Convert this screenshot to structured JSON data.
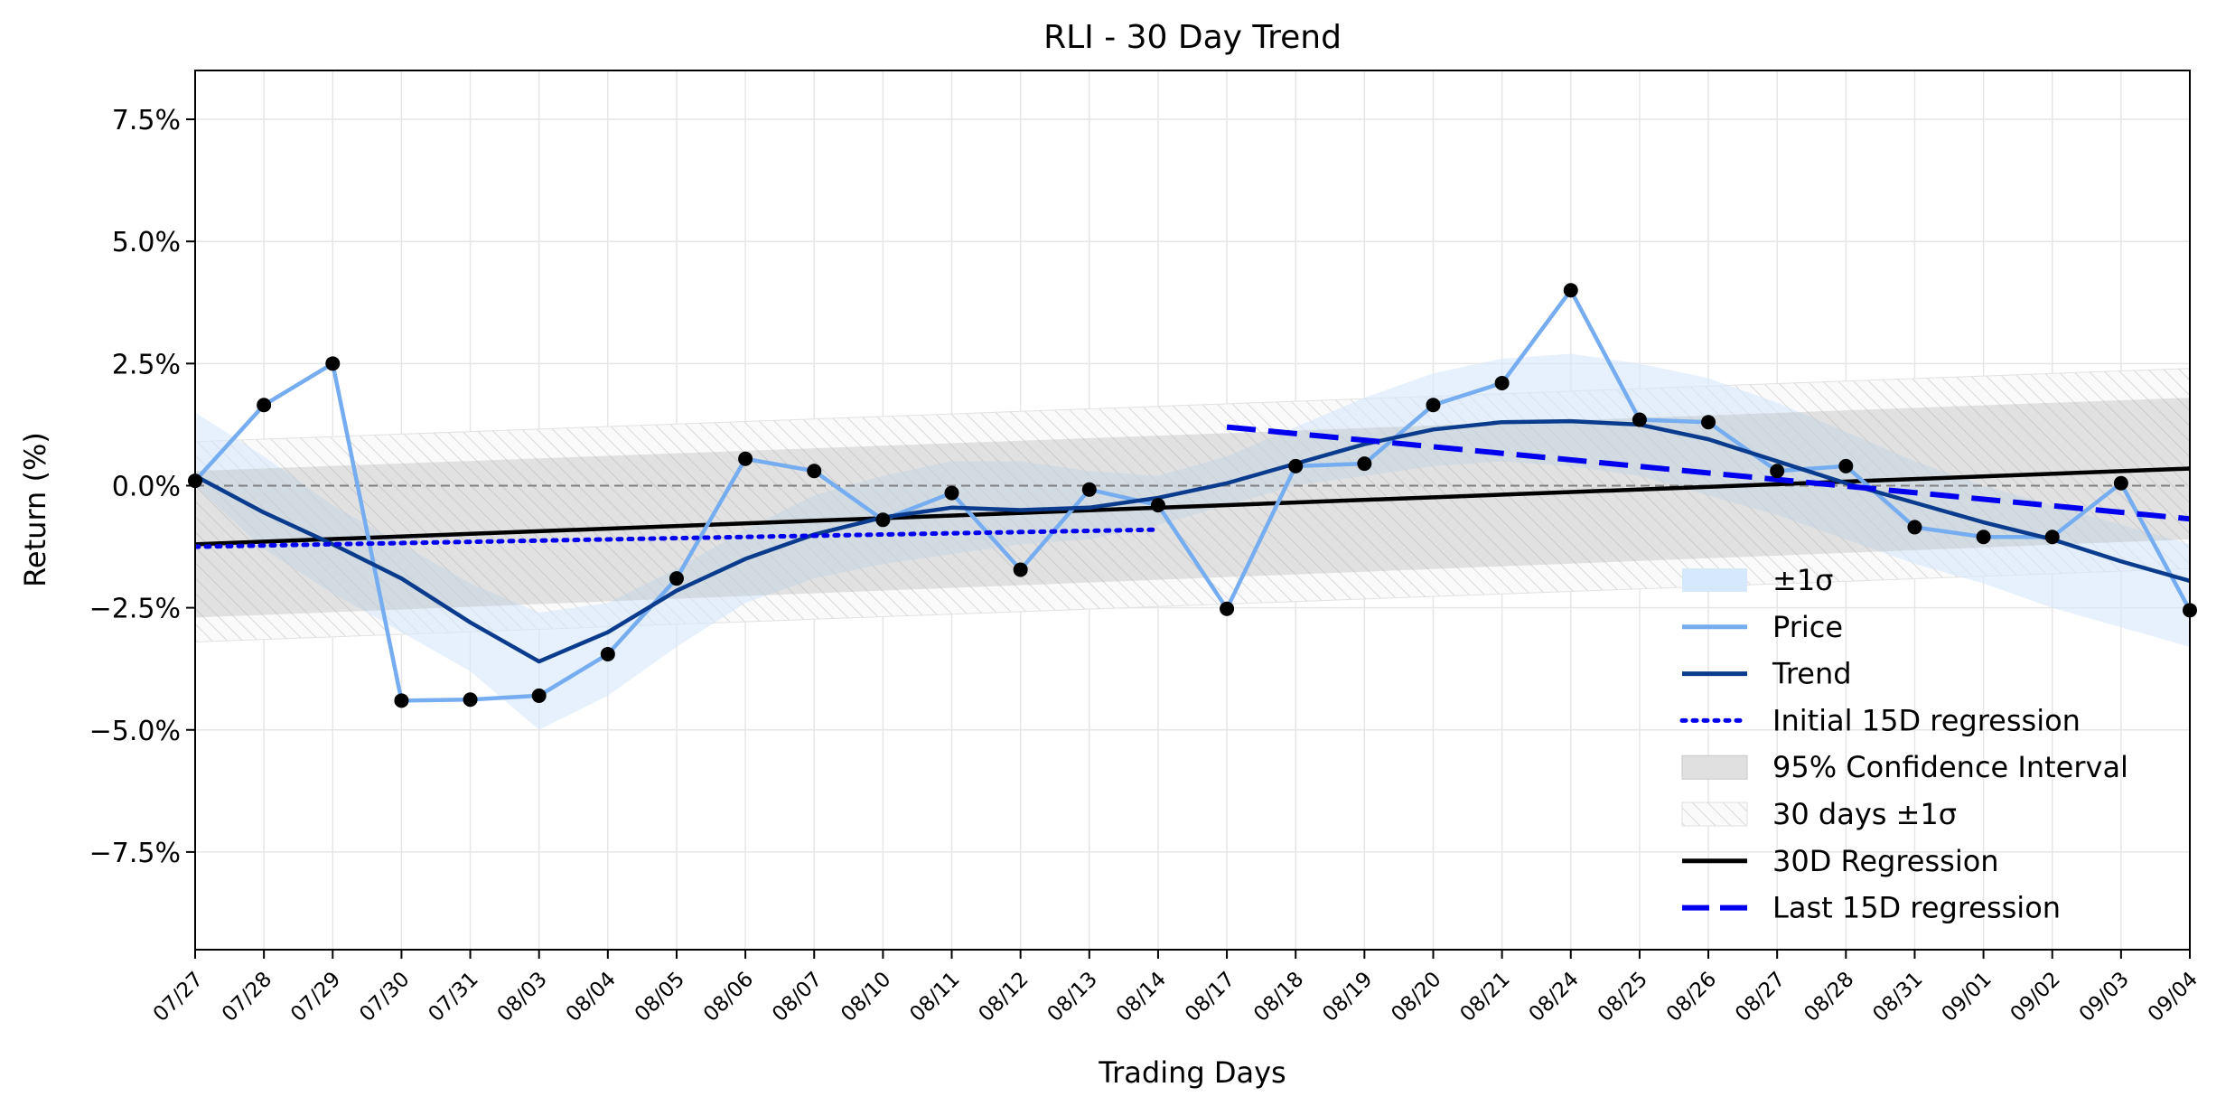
{
  "chart_data": {
    "type": "line",
    "title": "RLI - 30 Day Trend",
    "xlabel": "Trading Days",
    "ylabel": "Return (%)",
    "ylim": [
      -9.5,
      8.5
    ],
    "yticks": [
      {
        "value": -7.5,
        "label": "−7.5%"
      },
      {
        "value": -5.0,
        "label": "−5.0%"
      },
      {
        "value": -2.5,
        "label": "−2.5%"
      },
      {
        "value": 0.0,
        "label": "0.0%"
      },
      {
        "value": 2.5,
        "label": "2.5%"
      },
      {
        "value": 5.0,
        "label": "5.0%"
      },
      {
        "value": 7.5,
        "label": "7.5%"
      }
    ],
    "grid": true,
    "legend_position": "lower-right",
    "categories": [
      "07/27",
      "07/28",
      "07/29",
      "07/30",
      "07/31",
      "08/03",
      "08/04",
      "08/05",
      "08/06",
      "08/07",
      "08/10",
      "08/11",
      "08/12",
      "08/13",
      "08/14",
      "08/17",
      "08/18",
      "08/19",
      "08/20",
      "08/21",
      "08/24",
      "08/25",
      "08/26",
      "08/27",
      "08/28",
      "08/31",
      "09/01",
      "09/02",
      "09/03",
      "09/04"
    ],
    "series": [
      {
        "name": "Price",
        "color": "#76acf0",
        "values": [
          0.1,
          1.65,
          2.5,
          -4.4,
          -4.38,
          -4.3,
          -3.45,
          -1.9,
          0.55,
          0.3,
          -0.7,
          -0.15,
          -1.72,
          -0.08,
          -0.4,
          -2.52,
          0.4,
          0.45,
          1.65,
          2.1,
          4.0,
          1.35,
          1.3,
          0.3,
          0.4,
          -0.85,
          -1.05,
          -1.05,
          0.05,
          -2.55
        ]
      },
      {
        "name": "Trend",
        "color": "#0b3b8c",
        "values": [
          0.2,
          -0.55,
          -1.2,
          -1.9,
          -2.8,
          -3.6,
          -3.0,
          -2.15,
          -1.5,
          -1.0,
          -0.65,
          -0.45,
          -0.5,
          -0.45,
          -0.25,
          0.05,
          0.45,
          0.85,
          1.15,
          1.3,
          1.32,
          1.25,
          0.95,
          0.5,
          0.05,
          -0.35,
          -0.75,
          -1.1,
          -1.55,
          -1.95
        ]
      },
      {
        "name": "Initial 15D regression",
        "color": "#0000ee",
        "x_range": [
          0,
          14
        ],
        "line": [
          -1.25,
          -0.9
        ]
      },
      {
        "name": "Last 15D regression",
        "color": "#0000ee",
        "x_range": [
          15,
          29
        ],
        "line": [
          1.2,
          -0.68
        ]
      },
      {
        "name": "30D Regression",
        "color": "#000000",
        "x_range": [
          0,
          29
        ],
        "line": [
          -1.2,
          0.35
        ]
      }
    ],
    "bands": [
      {
        "name": "±1σ",
        "color": "#d6e8fc",
        "upper": [
          1.5,
          0.6,
          -0.4,
          -1.2,
          -2.0,
          -2.6,
          -2.4,
          -1.7,
          -0.9,
          -0.2,
          0.2,
          0.5,
          0.5,
          0.3,
          0.2,
          0.6,
          1.2,
          1.8,
          2.3,
          2.6,
          2.7,
          2.5,
          2.2,
          1.7,
          1.1,
          0.5,
          0.0,
          -0.4,
          -0.8,
          -1.2
        ],
        "lower": [
          0.0,
          -1.3,
          -2.2,
          -3.0,
          -3.8,
          -5.0,
          -4.3,
          -3.3,
          -2.4,
          -1.9,
          -1.6,
          -1.4,
          -1.2,
          -1.1,
          -0.8,
          -0.4,
          0.0,
          0.2,
          0.4,
          0.5,
          0.4,
          0.2,
          -0.2,
          -0.6,
          -1.1,
          -1.6,
          -2.0,
          -2.5,
          -2.9,
          -3.3
        ]
      },
      {
        "name": "95% Confidence Interval",
        "color": "#cccccc",
        "upper_line": [
          0.3,
          1.8
        ],
        "lower_line": [
          -2.7,
          -1.1
        ]
      },
      {
        "name": "30 days ±1σ",
        "color": "#dddddd",
        "upper_line": [
          0.9,
          2.4
        ],
        "lower_line": [
          -3.2,
          -1.7
        ]
      }
    ],
    "legend": [
      {
        "label": "±1σ",
        "kind": "patch",
        "color": "#d6e8fc"
      },
      {
        "label": "Price",
        "kind": "line",
        "color": "#76acf0"
      },
      {
        "label": "Trend",
        "kind": "line",
        "color": "#0b3b8c"
      },
      {
        "label": "Initial 15D regression",
        "kind": "dotted",
        "color": "#0000ee"
      },
      {
        "label": "95% Confidence Interval",
        "kind": "patch",
        "color": "#cccccc"
      },
      {
        "label": "30 days ±1σ",
        "kind": "hatch",
        "color": "#dddddd"
      },
      {
        "label": "30D Regression",
        "kind": "line",
        "color": "#000000"
      },
      {
        "label": "Last 15D regression",
        "kind": "dashed",
        "color": "#0000ee"
      }
    ]
  }
}
